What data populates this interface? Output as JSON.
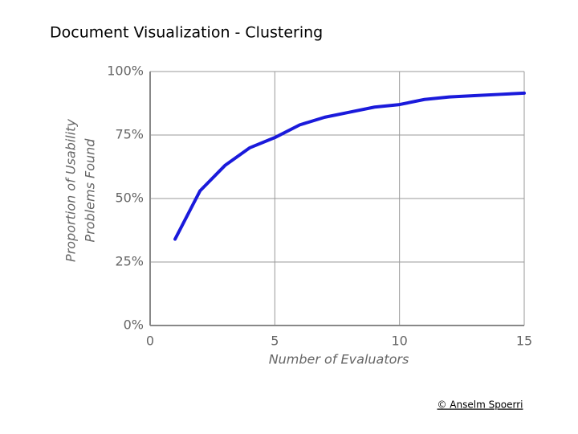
{
  "header": {
    "title": "Document Visualization - Clustering"
  },
  "chart_data": {
    "type": "line",
    "xlabel": "Number of Evaluators",
    "ylabel": [
      "Proportion of Usability",
      "Problems Found"
    ],
    "x": [
      1,
      2,
      3,
      4,
      5,
      6,
      7,
      8,
      9,
      10,
      11,
      12,
      13,
      14,
      15
    ],
    "series": [
      {
        "color": "#1a1adb",
        "values": [
          34,
          53,
          63,
          70,
          74,
          79,
          82,
          84,
          86,
          87,
          89,
          90,
          90.5,
          91,
          91.5
        ]
      }
    ],
    "xlim": [
      0,
      15
    ],
    "xticks": [
      0,
      5,
      10,
      15
    ],
    "ylim": [
      0,
      100
    ],
    "yticks": [
      {
        "value": 0,
        "label": "0%"
      },
      {
        "value": 25,
        "label": "25%"
      },
      {
        "value": 50,
        "label": "50%"
      },
      {
        "value": 75,
        "label": "75%"
      },
      {
        "value": 100,
        "label": "100%"
      }
    ],
    "grid": true
  },
  "footer": {
    "credit": "© Anselm Spoerri"
  }
}
